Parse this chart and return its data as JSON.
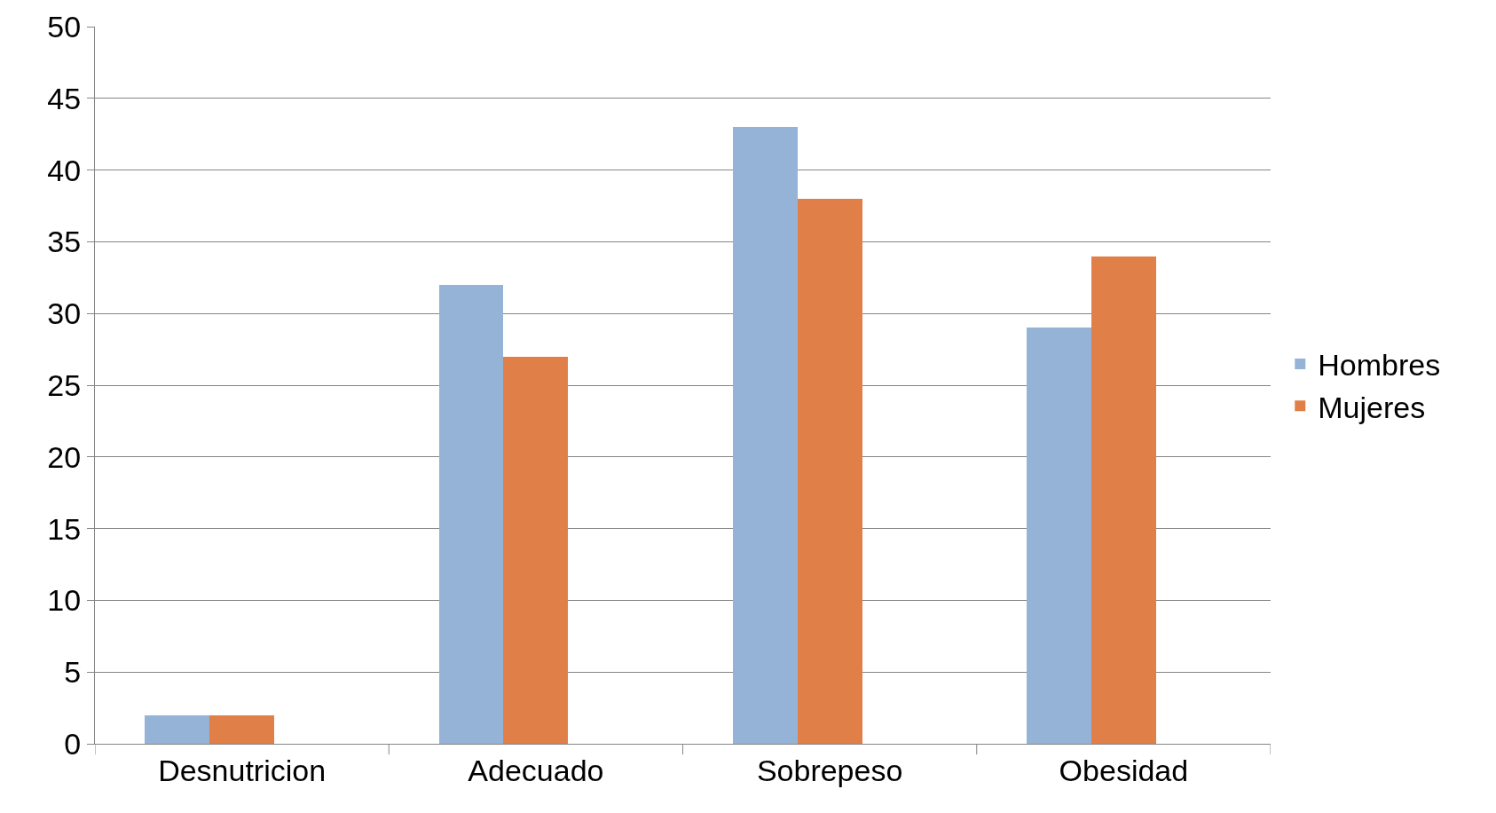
{
  "chart_data": {
    "type": "bar",
    "categories": [
      "Desnutricion",
      "Adecuado",
      "Sobrepeso",
      "Obesidad"
    ],
    "series": [
      {
        "name": "Hombres",
        "color": "#95b3d7",
        "values": [
          2,
          32,
          43,
          29
        ]
      },
      {
        "name": "Mujeres",
        "color": "#e07f48",
        "values": [
          2,
          27,
          38,
          34
        ]
      }
    ],
    "ylim": [
      0,
      50
    ],
    "yticks": [
      0,
      5,
      10,
      15,
      20,
      25,
      30,
      35,
      40,
      45,
      50
    ],
    "grid": "y",
    "legend": "right"
  }
}
